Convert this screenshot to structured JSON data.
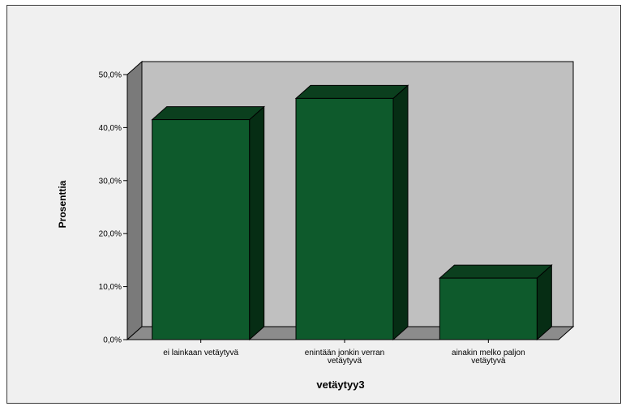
{
  "chart_data": {
    "type": "bar",
    "style": "3d",
    "categories": [
      [
        "ei lainkaan vetäytyvä"
      ],
      [
        "enintään jonkin verran",
        "vetäytyvä"
      ],
      [
        "ainakin melko paljon",
        "vetäytyvä"
      ]
    ],
    "values": [
      41.5,
      45.5,
      11.6
    ],
    "xlabel": "vetäytyy3",
    "ylabel": "Prosenttia",
    "ylim": [
      0,
      50
    ],
    "yticks": [
      "0,0%",
      "10,0%",
      "20,0%",
      "30,0%",
      "40,0%",
      "50,0%"
    ],
    "ytick_values": [
      0,
      10,
      20,
      30,
      40,
      50
    ],
    "grid": false,
    "colors": {
      "bar_front": "#0e5a2c",
      "bar_top": "#0b3f1e",
      "bar_side": "#062d14",
      "back_wall": "#c0c0c0",
      "side_wall": "#7a7a7a",
      "floor": "#8c8c8c",
      "frame_bg": "#f0f0f0"
    }
  }
}
